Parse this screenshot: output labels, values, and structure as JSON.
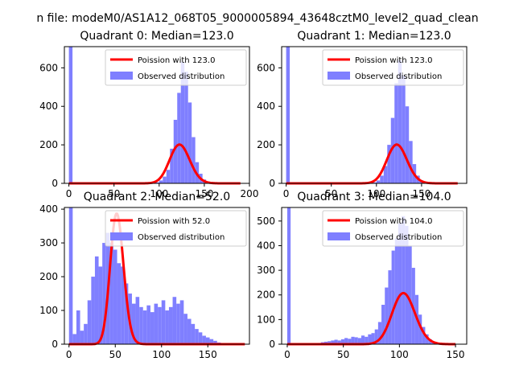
{
  "suptitle": "n file: modeM0/AS1A12_068T05_9000005894_43648cztM0_level2_quad_clean",
  "colors": {
    "histogram": "#7f7fff",
    "poisson_fit": "#ff0000",
    "background": "#ffffff"
  },
  "chart_data": [
    {
      "type": "bar",
      "title": "Quadrant 0: Median=123.0",
      "xlim": [
        -5,
        200
      ],
      "ylim": [
        0,
        710
      ],
      "xticks": [
        0,
        50,
        100,
        150,
        200
      ],
      "yticks": [
        0,
        200,
        400,
        600
      ],
      "xlabel": "",
      "ylabel": "",
      "bin_width": 4,
      "legend": {
        "placement": "upper right",
        "entries": [
          "Poission with 123.0",
          "Observed distribution"
        ]
      },
      "series": [
        {
          "name": "Observed distribution",
          "kind": "histogram",
          "bins": [
            {
              "x": 0,
              "y": 710
            },
            {
              "x": 96,
              "y": 5
            },
            {
              "x": 100,
              "y": 15
            },
            {
              "x": 104,
              "y": 35
            },
            {
              "x": 108,
              "y": 70
            },
            {
              "x": 112,
              "y": 180
            },
            {
              "x": 116,
              "y": 330
            },
            {
              "x": 120,
              "y": 470
            },
            {
              "x": 124,
              "y": 630
            },
            {
              "x": 128,
              "y": 580
            },
            {
              "x": 132,
              "y": 420
            },
            {
              "x": 136,
              "y": 240
            },
            {
              "x": 140,
              "y": 110
            },
            {
              "x": 144,
              "y": 50
            },
            {
              "x": 148,
              "y": 20
            },
            {
              "x": 152,
              "y": 10
            },
            {
              "x": 156,
              "y": 5
            }
          ]
        },
        {
          "name": "Poission with 123.0",
          "kind": "poisson",
          "mean": 123.0,
          "scale": 5600,
          "range": [
            0,
            190
          ]
        }
      ]
    },
    {
      "type": "bar",
      "title": "Quadrant 1: Median=123.0",
      "xlim": [
        -5,
        200
      ],
      "ylim": [
        0,
        710
      ],
      "xticks": [
        0,
        50,
        100,
        150
      ],
      "yticks": [
        0,
        200,
        400,
        600
      ],
      "xlabel": "",
      "ylabel": "",
      "bin_width": 4,
      "legend": {
        "placement": "upper right",
        "entries": [
          "Poission with 123.0",
          "Observed distribution"
        ]
      },
      "series": [
        {
          "name": "Observed distribution",
          "kind": "histogram",
          "bins": [
            {
              "x": 0,
              "y": 710
            },
            {
              "x": 96,
              "y": 5
            },
            {
              "x": 100,
              "y": 15
            },
            {
              "x": 104,
              "y": 40
            },
            {
              "x": 108,
              "y": 90
            },
            {
              "x": 112,
              "y": 200
            },
            {
              "x": 116,
              "y": 340
            },
            {
              "x": 120,
              "y": 520
            },
            {
              "x": 124,
              "y": 640
            },
            {
              "x": 128,
              "y": 560
            },
            {
              "x": 132,
              "y": 400
            },
            {
              "x": 136,
              "y": 220
            },
            {
              "x": 140,
              "y": 100
            },
            {
              "x": 144,
              "y": 40
            },
            {
              "x": 148,
              "y": 15
            },
            {
              "x": 152,
              "y": 5
            }
          ]
        },
        {
          "name": "Poission with 123.0",
          "kind": "poisson",
          "mean": 123.0,
          "scale": 5600,
          "range": [
            0,
            190
          ]
        }
      ]
    },
    {
      "type": "bar",
      "title": "Quadrant 2: Median=52.0",
      "xlim": [
        -5,
        195
      ],
      "ylim": [
        0,
        405
      ],
      "xticks": [
        0,
        50,
        100,
        150
      ],
      "yticks": [
        0,
        100,
        200,
        300,
        400
      ],
      "xlabel": "",
      "ylabel": "",
      "bin_width": 4,
      "legend": {
        "placement": "upper right",
        "entries": [
          "Poission with 52.0",
          "Observed distribution"
        ]
      },
      "series": [
        {
          "name": "Observed distribution",
          "kind": "histogram",
          "bins": [
            {
              "x": 0,
              "y": 405
            },
            {
              "x": 4,
              "y": 30
            },
            {
              "x": 8,
              "y": 100
            },
            {
              "x": 12,
              "y": 40
            },
            {
              "x": 16,
              "y": 60
            },
            {
              "x": 20,
              "y": 130
            },
            {
              "x": 24,
              "y": 200
            },
            {
              "x": 28,
              "y": 260
            },
            {
              "x": 32,
              "y": 230
            },
            {
              "x": 36,
              "y": 300
            },
            {
              "x": 40,
              "y": 330
            },
            {
              "x": 44,
              "y": 300
            },
            {
              "x": 48,
              "y": 280
            },
            {
              "x": 52,
              "y": 240
            },
            {
              "x": 56,
              "y": 230
            },
            {
              "x": 60,
              "y": 180
            },
            {
              "x": 64,
              "y": 150
            },
            {
              "x": 68,
              "y": 120
            },
            {
              "x": 72,
              "y": 140
            },
            {
              "x": 76,
              "y": 110
            },
            {
              "x": 80,
              "y": 100
            },
            {
              "x": 84,
              "y": 115
            },
            {
              "x": 88,
              "y": 95
            },
            {
              "x": 92,
              "y": 120
            },
            {
              "x": 96,
              "y": 110
            },
            {
              "x": 100,
              "y": 130
            },
            {
              "x": 104,
              "y": 100
            },
            {
              "x": 108,
              "y": 110
            },
            {
              "x": 112,
              "y": 140
            },
            {
              "x": 116,
              "y": 120
            },
            {
              "x": 120,
              "y": 130
            },
            {
              "x": 124,
              "y": 90
            },
            {
              "x": 128,
              "y": 75
            },
            {
              "x": 132,
              "y": 60
            },
            {
              "x": 136,
              "y": 45
            },
            {
              "x": 140,
              "y": 35
            },
            {
              "x": 144,
              "y": 25
            },
            {
              "x": 148,
              "y": 20
            },
            {
              "x": 152,
              "y": 15
            },
            {
              "x": 156,
              "y": 10
            },
            {
              "x": 160,
              "y": 5
            },
            {
              "x": 164,
              "y": 3
            }
          ]
        },
        {
          "name": "Poission with 52.0",
          "kind": "poisson",
          "mean": 52.0,
          "scale": 7000,
          "range": [
            0,
            190
          ]
        }
      ]
    },
    {
      "type": "bar",
      "title": "Quadrant 3: Median=104.0",
      "xlim": [
        -5,
        160
      ],
      "ylim": [
        0,
        555
      ],
      "xticks": [
        0,
        50,
        100,
        150
      ],
      "yticks": [
        0,
        100,
        200,
        300,
        400,
        500
      ],
      "xlabel": "",
      "ylabel": "",
      "bin_width": 3,
      "legend": {
        "placement": "upper right",
        "entries": [
          "Poission with 104.0",
          "Observed distribution"
        ]
      },
      "series": [
        {
          "name": "Observed distribution",
          "kind": "histogram",
          "bins": [
            {
              "x": 0,
              "y": 555
            },
            {
              "x": 27,
              "y": 5
            },
            {
              "x": 30,
              "y": 8
            },
            {
              "x": 33,
              "y": 10
            },
            {
              "x": 36,
              "y": 12
            },
            {
              "x": 39,
              "y": 15
            },
            {
              "x": 42,
              "y": 18
            },
            {
              "x": 45,
              "y": 15
            },
            {
              "x": 48,
              "y": 20
            },
            {
              "x": 51,
              "y": 25
            },
            {
              "x": 54,
              "y": 22
            },
            {
              "x": 57,
              "y": 30
            },
            {
              "x": 60,
              "y": 28
            },
            {
              "x": 63,
              "y": 25
            },
            {
              "x": 66,
              "y": 35
            },
            {
              "x": 69,
              "y": 30
            },
            {
              "x": 72,
              "y": 40
            },
            {
              "x": 75,
              "y": 45
            },
            {
              "x": 78,
              "y": 60
            },
            {
              "x": 81,
              "y": 90
            },
            {
              "x": 84,
              "y": 160
            },
            {
              "x": 87,
              "y": 230
            },
            {
              "x": 90,
              "y": 300
            },
            {
              "x": 93,
              "y": 380
            },
            {
              "x": 96,
              "y": 430
            },
            {
              "x": 99,
              "y": 490
            },
            {
              "x": 102,
              "y": 520
            },
            {
              "x": 105,
              "y": 480
            },
            {
              "x": 108,
              "y": 400
            },
            {
              "x": 111,
              "y": 310
            },
            {
              "x": 114,
              "y": 200
            },
            {
              "x": 117,
              "y": 120
            },
            {
              "x": 120,
              "y": 70
            },
            {
              "x": 123,
              "y": 40
            },
            {
              "x": 126,
              "y": 20
            },
            {
              "x": 129,
              "y": 10
            },
            {
              "x": 132,
              "y": 5
            }
          ]
        },
        {
          "name": "Poission with 104.0",
          "kind": "poisson",
          "mean": 104.0,
          "scale": 5300,
          "range": [
            0,
            150
          ]
        }
      ]
    }
  ]
}
